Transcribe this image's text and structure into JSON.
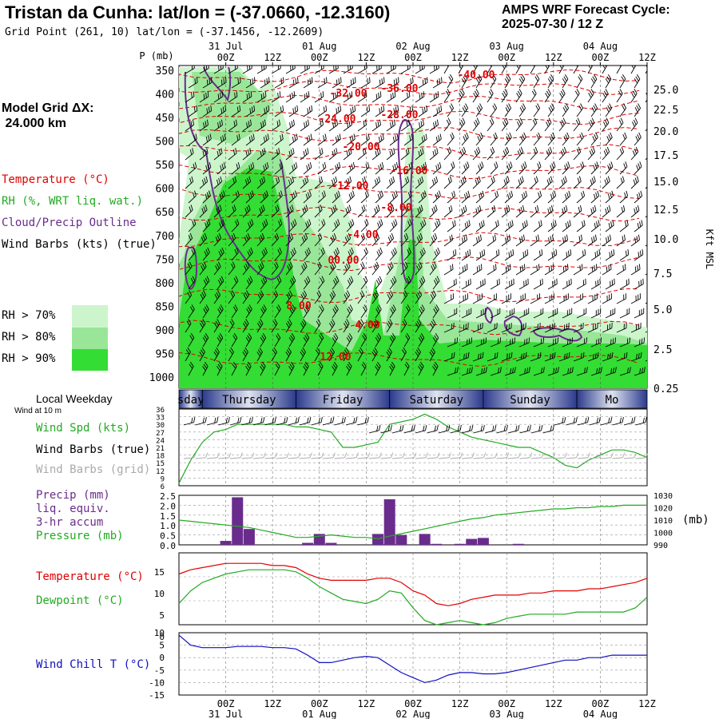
{
  "header": {
    "title": "Tristan da Cunha:  lat/lon = (-37.0660, -12.3160)",
    "grid_point": "Grid Point (261, 10) lat/lon = (-37.1456, -12.2609)",
    "cycle_line1": "AMPS WRF Forecast Cycle:",
    "cycle_line2": "2025-07-30 / 12  Z"
  },
  "model_grid": {
    "line1": "Model Grid ΔX:",
    "line2": " 24.000 km"
  },
  "legend": {
    "temperature": "Temperature (°C)",
    "rh": "RH (%, WRT liq. wat.)",
    "cloud": "Cloud/Precip Outline",
    "wind_barbs": "Wind Barbs (kts) (true)",
    "rh70": "RH > 70%",
    "rh80": "RH > 80%",
    "rh90": "RH > 90%",
    "local_weekday": "Local Weekday",
    "wind_at_10m": "Wind at 10 m"
  },
  "colors": {
    "temperature": "#e00000",
    "rh": "#22aa22",
    "cloud": "#6a2c8c",
    "rh70": "#ccf5cc",
    "rh80": "#99e699",
    "rh90": "#33dd33",
    "windchill": "#1010c0",
    "precip": "#6a2c8c",
    "gray": "#aaaaaa"
  },
  "time_axis": {
    "ticks": [
      "00Z",
      "12Z",
      "00Z",
      "12Z",
      "00Z",
      "12Z",
      "00Z",
      "12Z",
      "00Z",
      "12Z"
    ],
    "dates_top": [
      "31 Jul",
      "01 Aug",
      "02 Aug",
      "03 Aug",
      "04 Aug"
    ],
    "dates_bottom": [
      "31 Jul",
      "01 Aug",
      "02 Aug",
      "03 Aug",
      "04 Aug"
    ],
    "weekdays": [
      "sday",
      "Thursday",
      "Friday",
      "Saturday",
      "Sunday",
      "Mo"
    ]
  },
  "cross_section": {
    "p_label": "P (mb)",
    "pressure_ticks": [
      "350",
      "400",
      "450",
      "500",
      "550",
      "600",
      "650",
      "700",
      "750",
      "800",
      "850",
      "900",
      "950",
      "1000"
    ],
    "height_ticks": [
      "25.0",
      "22.5",
      "20.0",
      "17.5",
      "15.0",
      "12.5",
      "10.0",
      "7.5",
      "5.0",
      "2.5",
      "0.25"
    ],
    "height_label": "Kft MSL",
    "temp_labels": [
      "-40.00",
      "-36.00",
      "-32.00",
      "-28.00",
      "-24.00",
      "-20.00",
      "-16.00",
      "-12.00",
      "-8.00",
      "-4.00",
      "00.00",
      "8.00",
      "4.00",
      "12.00"
    ]
  },
  "wind_panel": {
    "label_speed": "Wind Spd (kts)",
    "label_barbs_true": "Wind Barbs (true)",
    "label_barbs_grid": "Wind Barbs (grid)",
    "yticks": [
      "36",
      "33",
      "30",
      "27",
      "24",
      "21",
      "18",
      "15",
      "12",
      "9",
      "6"
    ]
  },
  "precip_panel": {
    "label1": "Precip (mm)",
    "label2": "liq. equiv.",
    "label3": "3-hr accum",
    "label4": "Pressure (mb)",
    "unit": "(mb)",
    "yticks_left": [
      "2.5",
      "2.0",
      "1.5",
      "1.0",
      "0.5",
      "0.0"
    ],
    "yticks_right": [
      "1030",
      "1020",
      "1010",
      "1000",
      "990"
    ]
  },
  "temp_panel": {
    "label1": "Temperature (°C)",
    "label2": "Dewpoint (°C)",
    "yticks": [
      "15",
      "10",
      "5",
      "0"
    ]
  },
  "chill_panel": {
    "label": "Wind Chill T (°C)",
    "yticks": [
      "10",
      "5",
      "0",
      "-5",
      "-10",
      "-15"
    ]
  },
  "chart_data": {
    "type": "line",
    "x_hours": [
      0,
      3,
      6,
      9,
      12,
      15,
      18,
      21,
      24,
      27,
      30,
      33,
      36,
      39,
      42,
      45,
      48,
      51,
      54,
      57,
      60,
      63,
      66,
      69,
      72,
      75,
      78,
      81,
      84,
      87,
      90,
      93,
      96,
      99,
      102,
      105,
      108,
      111,
      114,
      117,
      120
    ],
    "series": [
      {
        "name": "Wind Spd (kts)",
        "values": [
          7,
          16,
          23,
          27,
          28,
          30,
          30,
          30,
          30,
          30,
          29,
          29,
          28,
          27,
          21,
          21,
          22,
          23,
          30,
          31,
          32,
          34,
          32,
          29,
          27,
          25,
          24,
          23,
          22,
          21,
          21,
          19,
          17,
          14,
          13,
          16,
          18,
          20,
          20,
          19,
          17
        ]
      },
      {
        "name": "Precip (mm)",
        "values": [
          0,
          0,
          0,
          0,
          0.2,
          2.4,
          0.8,
          0,
          0,
          0,
          0,
          0.1,
          0.55,
          0.1,
          0,
          0,
          0,
          0.55,
          2.3,
          0.5,
          0,
          0.55,
          0.05,
          0,
          0.05,
          0.3,
          0.35,
          0,
          0,
          0.05,
          0,
          0,
          0,
          0,
          0,
          0,
          0,
          0,
          0,
          0,
          0
        ]
      },
      {
        "name": "Pressure (mb)",
        "values": [
          1010,
          1009,
          1008,
          1007,
          1006,
          1005,
          1004,
          1002,
          1000,
          998,
          996,
          996,
          997,
          998,
          997,
          996,
          996,
          995,
          997,
          999,
          1001,
          1003,
          1005,
          1007,
          1009,
          1011,
          1012,
          1014,
          1015,
          1016,
          1017,
          1018,
          1019,
          1019,
          1020,
          1020,
          1021,
          1021,
          1022,
          1022,
          1022
        ]
      },
      {
        "name": "Temperature (°C)",
        "values": [
          12,
          13,
          13.5,
          14,
          14.5,
          14.5,
          14.5,
          14.5,
          14,
          14,
          13.5,
          12,
          11,
          10.5,
          10.5,
          10.5,
          10.5,
          11,
          11,
          10,
          8,
          7,
          5,
          4.5,
          5,
          6,
          6.5,
          7,
          7,
          7,
          7.5,
          7.5,
          8,
          8,
          8,
          8.5,
          8.5,
          9,
          9.5,
          10,
          11
        ]
      },
      {
        "name": "Dewpoint (°C)",
        "values": [
          5,
          8,
          10,
          11,
          12,
          12.5,
          13,
          13,
          13,
          13,
          12.5,
          11,
          9,
          7.5,
          6,
          5.5,
          5,
          6,
          8,
          7.5,
          4,
          1,
          0,
          0.5,
          1,
          0.5,
          0,
          0.5,
          1.5,
          2,
          2.5,
          2.5,
          2.5,
          2.5,
          3,
          3,
          3,
          3,
          3,
          4,
          6.5
        ]
      },
      {
        "name": "Wind Chill T (°C)",
        "values": [
          9,
          5,
          4,
          4,
          4,
          4.5,
          4.5,
          4.5,
          4,
          4,
          3.5,
          1,
          -2,
          -2,
          -1,
          0,
          0.5,
          0,
          -3,
          -6,
          -8,
          -10,
          -9,
          -7,
          -6,
          -6,
          -6.5,
          -6.5,
          -6,
          -5,
          -4,
          -3,
          -2,
          -1,
          -1,
          0,
          0,
          1,
          1,
          1,
          1
        ]
      }
    ],
    "xlabel": "",
    "ylim_wind": [
      6,
      36
    ],
    "ylim_precip": [
      0,
      2.5
    ],
    "ylim_pressure": [
      990,
      1030
    ],
    "ylim_temp": [
      0,
      17
    ],
    "ylim_chill": [
      -15,
      10
    ]
  }
}
